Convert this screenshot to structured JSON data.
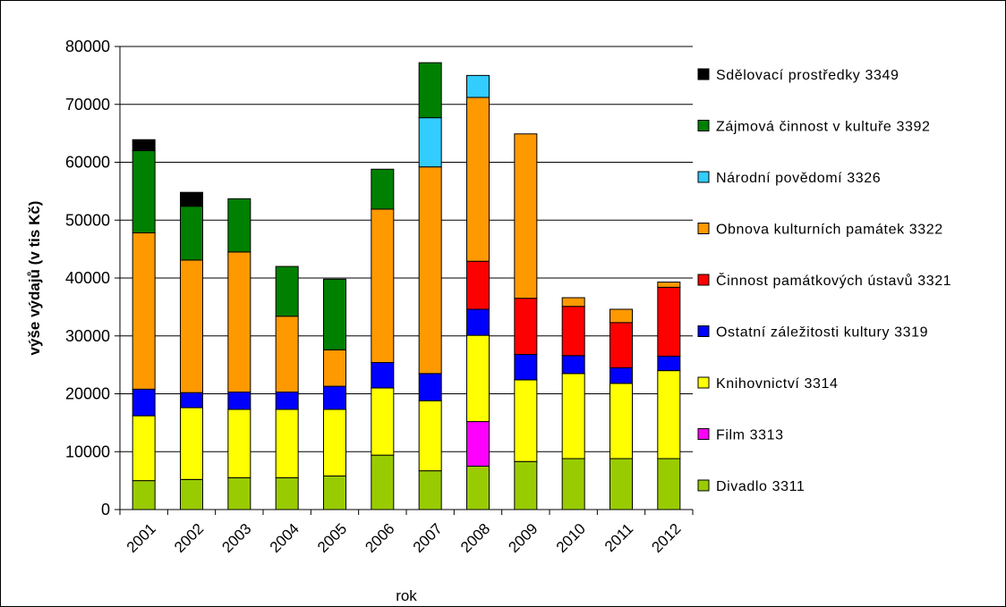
{
  "chart_data": {
    "type": "bar",
    "stacked": true,
    "title": "",
    "xlabel": "rok",
    "ylabel": "výše výdajů (v tis Kč)",
    "ylim": [
      0,
      80000
    ],
    "yticks": [
      0,
      10000,
      20000,
      30000,
      40000,
      50000,
      60000,
      70000,
      80000
    ],
    "ytick_labels": [
      "0",
      "10000",
      "20000",
      "30000",
      "40000",
      "50000",
      "60000",
      "70000",
      "80000"
    ],
    "grid": true,
    "legend_position": "right",
    "categories": [
      "2001",
      "2002",
      "2003",
      "2004",
      "2005",
      "2006",
      "2007",
      "2008",
      "2009",
      "2010",
      "2011",
      "2012"
    ],
    "series": [
      {
        "name": "Divadlo 3311",
        "color": "#99cc00",
        "values": [
          5000,
          5200,
          5500,
          5500,
          5800,
          9400,
          6700,
          7500,
          8300,
          8800,
          8800,
          8800
        ]
      },
      {
        "name": "Film 3313",
        "color": "#ff00ff",
        "values": [
          0,
          0,
          0,
          0,
          0,
          0,
          0,
          7700,
          0,
          0,
          0,
          0
        ]
      },
      {
        "name": "Knihovnictví 3314",
        "color": "#ffff00",
        "values": [
          11200,
          12400,
          11800,
          11800,
          11500,
          11600,
          12100,
          14900,
          14100,
          14700,
          13000,
          15200
        ]
      },
      {
        "name": "Ostatní záležitosti kultury 3319",
        "color": "#0000ff",
        "values": [
          4600,
          2600,
          3000,
          3000,
          4000,
          4400,
          4700,
          4500,
          4400,
          3100,
          2700,
          2500
        ]
      },
      {
        "name": "Činnost památkových ústavů 3321",
        "color": "#ff0000",
        "values": [
          0,
          0,
          0,
          0,
          0,
          0,
          0,
          8300,
          9700,
          8500,
          7800,
          11900
        ]
      },
      {
        "name": "Obnova kulturních památek 3322",
        "color": "#ff9900",
        "values": [
          27000,
          22900,
          24200,
          13100,
          6300,
          26500,
          35700,
          28300,
          28400,
          1500,
          2300,
          900
        ]
      },
      {
        "name": "Národní povědomí 3326",
        "color": "#33ccff",
        "values": [
          0,
          0,
          0,
          0,
          0,
          0,
          8500,
          3800,
          0,
          0,
          0,
          0
        ]
      },
      {
        "name": "Zájmová činnost v kultuře 3392",
        "color": "#008000",
        "values": [
          14200,
          9300,
          9200,
          8600,
          12200,
          6900,
          9500,
          0,
          0,
          0,
          0,
          0
        ]
      },
      {
        "name": "Sdělovací prostředky 3349",
        "color": "#000000",
        "values": [
          1900,
          2400,
          0,
          0,
          0,
          0,
          0,
          0,
          0,
          0,
          0,
          0
        ]
      }
    ]
  }
}
